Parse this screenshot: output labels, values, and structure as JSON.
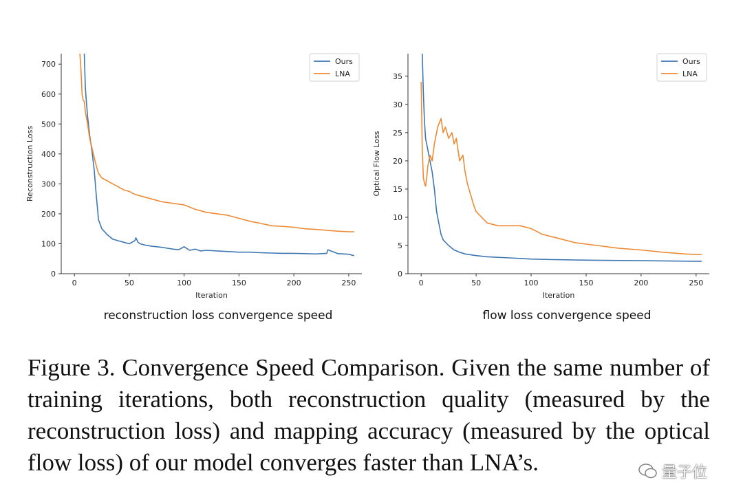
{
  "figure": {
    "subcaption_left": "reconstruction loss convergence speed",
    "subcaption_right": "flow loss convergence speed"
  },
  "caption": "Figure 3. Convergence Speed Comparison. Given the same number of training iterations, both reconstruction quality (measured by the reconstruction loss) and mapping accuracy (measured by the optical flow loss) of our model converges faster than LNA’s.",
  "watermark": "量子位",
  "colors": {
    "ours": "#3d76b2",
    "lna": "#ef8a34"
  },
  "chart_data": [
    {
      "type": "line",
      "xlabel": "Iteration",
      "ylabel": "Reconstruction Loss",
      "xlim": [
        -12,
        262
      ],
      "ylim": [
        0,
        735
      ],
      "xticks": [
        0,
        50,
        100,
        150,
        200,
        250
      ],
      "yticks": [
        0,
        100,
        200,
        300,
        400,
        500,
        600,
        700
      ],
      "legend": "top-right",
      "grid": false,
      "series": [
        {
          "name": "Ours",
          "color": "#3d76b2",
          "x": [
            9,
            10,
            11,
            12,
            14,
            16,
            18,
            20,
            22,
            25,
            30,
            35,
            40,
            45,
            50,
            55,
            56,
            58,
            60,
            65,
            70,
            75,
            80,
            85,
            90,
            95,
            100,
            105,
            110,
            115,
            120,
            130,
            140,
            150,
            160,
            170,
            180,
            190,
            200,
            210,
            220,
            230,
            231,
            240,
            250,
            255
          ],
          "y": [
            735,
            620,
            570,
            525,
            460,
            410,
            350,
            260,
            180,
            150,
            130,
            115,
            110,
            105,
            100,
            110,
            120,
            105,
            100,
            95,
            92,
            90,
            88,
            85,
            82,
            80,
            90,
            78,
            82,
            76,
            78,
            76,
            74,
            72,
            72,
            70,
            69,
            68,
            68,
            67,
            66,
            68,
            80,
            67,
            65,
            60
          ]
        },
        {
          "name": "LNA",
          "color": "#ef8a34",
          "x": [
            5,
            6,
            7,
            8,
            9,
            10,
            11,
            12,
            14,
            16,
            18,
            20,
            22,
            25,
            30,
            35,
            40,
            45,
            50,
            55,
            60,
            70,
            80,
            90,
            100,
            110,
            120,
            130,
            140,
            150,
            160,
            170,
            180,
            190,
            200,
            210,
            220,
            230,
            240,
            250,
            255
          ],
          "y": [
            735,
            680,
            600,
            580,
            575,
            540,
            520,
            500,
            450,
            420,
            390,
            360,
            335,
            320,
            310,
            300,
            290,
            280,
            275,
            265,
            260,
            250,
            240,
            235,
            230,
            215,
            205,
            200,
            195,
            185,
            175,
            168,
            160,
            158,
            155,
            150,
            148,
            145,
            142,
            140,
            140
          ]
        }
      ]
    },
    {
      "type": "line",
      "xlabel": "Iteration",
      "ylabel": "Optical Flow Loss",
      "xlim": [
        -12,
        262
      ],
      "ylim": [
        0,
        39
      ],
      "xticks": [
        0,
        50,
        100,
        150,
        200,
        250
      ],
      "yticks": [
        0,
        5,
        10,
        15,
        20,
        25,
        30,
        35
      ],
      "legend": "top-right",
      "grid": false,
      "series": [
        {
          "name": "Ours",
          "color": "#3d76b2",
          "x": [
            1,
            2,
            3,
            4,
            5,
            6,
            8,
            10,
            12,
            14,
            16,
            18,
            20,
            25,
            30,
            35,
            40,
            50,
            60,
            80,
            100,
            120,
            150,
            200,
            250,
            255
          ],
          "y": [
            39,
            32,
            27,
            24,
            23,
            22,
            20,
            18,
            15,
            11,
            9,
            7,
            6,
            5,
            4.2,
            3.8,
            3.5,
            3.2,
            3.0,
            2.8,
            2.6,
            2.5,
            2.4,
            2.3,
            2.2,
            2.2
          ]
        },
        {
          "name": "LNA",
          "color": "#ef8a34",
          "x": [
            0,
            1,
            2,
            3,
            4,
            5,
            6,
            8,
            10,
            12,
            15,
            18,
            20,
            22,
            25,
            28,
            30,
            32,
            35,
            38,
            40,
            42,
            45,
            48,
            50,
            55,
            60,
            70,
            80,
            90,
            100,
            110,
            120,
            140,
            160,
            180,
            200,
            220,
            240,
            250,
            255
          ],
          "y": [
            34,
            22,
            17,
            16,
            15.5,
            17,
            19,
            21,
            20,
            23,
            26,
            27.5,
            25,
            26,
            24,
            25,
            23,
            24,
            20,
            21,
            18,
            16,
            14,
            12,
            11,
            10,
            9,
            8.5,
            8.5,
            8.5,
            8,
            7,
            6.5,
            5.5,
            5,
            4.5,
            4.2,
            3.8,
            3.5,
            3.4,
            3.4
          ]
        }
      ]
    }
  ]
}
